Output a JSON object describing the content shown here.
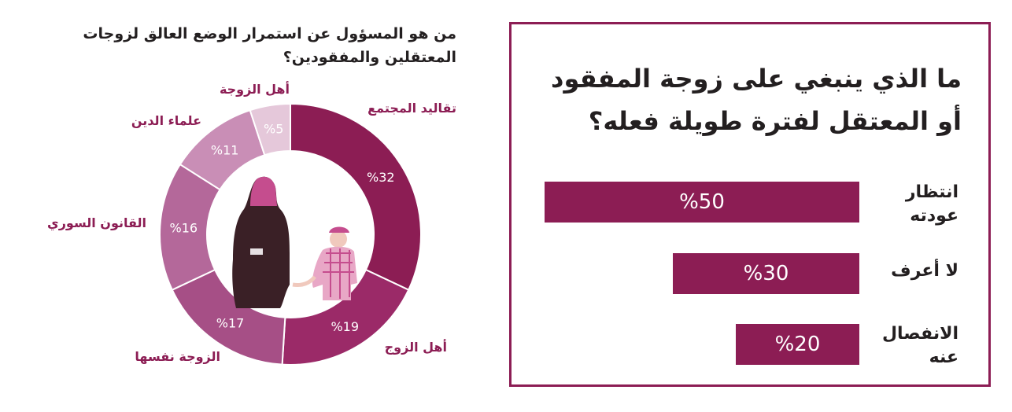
{
  "donut": {
    "title": "من هو المسؤول عن استمرار الوضع العالق لزوجات المعتقلين والمفقودين؟"
  },
  "bars": {
    "title": "ما الذي ينبغي على زوجة المفقود أو المعتقل لفترة طويلة فعله؟"
  },
  "colors": {
    "accent": "#8c1d54",
    "slice_colors": [
      "#8c1d54",
      "#9b2a68",
      "#a64f86",
      "#b4689a",
      "#c98eb6",
      "#e5c8da"
    ]
  },
  "chart_data": [
    {
      "type": "pie",
      "donut": true,
      "title": "من هو المسؤول عن استمرار الوضع العالق لزوجات المعتقلين والمفقودين؟",
      "categories": [
        "تقاليد المجتمع",
        "أهل الزوج",
        "الزوجة نفسها",
        "القانون السوري",
        "علماء الدين",
        "أهل الزوجة"
      ],
      "values": [
        32,
        19,
        17,
        16,
        11,
        5
      ],
      "value_labels": [
        "%32",
        "%19",
        "%17",
        "%16",
        "%11",
        "%5"
      ]
    },
    {
      "type": "bar",
      "orientation": "horizontal",
      "title": "ما الذي ينبغي على زوجة المفقود أو المعتقل لفترة طويلة فعله؟",
      "categories": [
        "انتظار عودته",
        "لا أعرف",
        "الانفصال عنه"
      ],
      "values": [
        50,
        30,
        20
      ],
      "value_labels": [
        "%50",
        "%30",
        "%20"
      ]
    }
  ]
}
